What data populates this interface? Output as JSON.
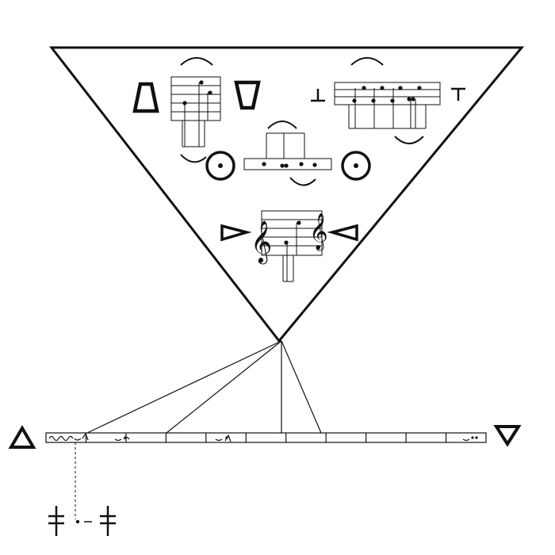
{
  "diagram": {
    "kind": "graphic-score-notation",
    "ink_color": "#111111",
    "background_color": "#ffffff",
    "clef_glyphs": {
      "treble": "𝄞"
    },
    "inner_groups": [
      {
        "name": "triangle-up-group",
        "side_symbols": [
          "triangle-up-icon",
          "triangle-down-icon"
        ]
      },
      {
        "name": "t-bar-group",
        "side_symbols": [
          "t-bar-up-icon",
          "t-bar-down-icon"
        ]
      },
      {
        "name": "circle-dot-group",
        "side_symbols": [
          "circle-dot-icon",
          "circle-dot-icon"
        ]
      },
      {
        "name": "clef-group",
        "side_symbols": [
          "wedge-right-icon",
          "wedge-left-icon"
        ]
      }
    ],
    "timeline": {
      "left_symbol": "triangle-up-icon",
      "right_symbol": "triangle-down-icon",
      "segment_count": 11
    },
    "legend_symbols": [
      "plus-t-icon",
      "dot-dash-icon",
      "plus-t-icon"
    ]
  }
}
